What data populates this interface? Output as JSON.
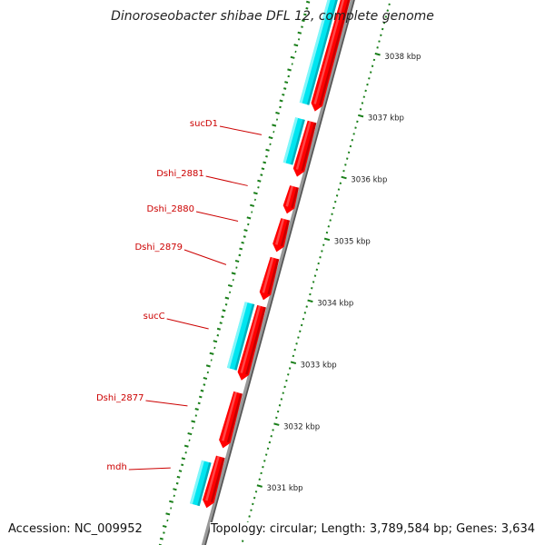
{
  "title": "Dinoroseobacter shibae DFL 12, complete genome",
  "accession": "Accession: NC_009952",
  "summary": "Topology: circular; Length: 3,789,584 bp; Genes: 3,634",
  "colors": {
    "forward_gene": "#00e5f0",
    "reverse_gene": "#ff0000",
    "backbone": "#999999",
    "ticks": "#1a7f1a",
    "gene_label": "#cc0000"
  },
  "axis": {
    "unit": "kbp",
    "ticks": [
      {
        "kbp": 3031,
        "label": "3031 kbp"
      },
      {
        "kbp": 3032,
        "label": "3032 kbp"
      },
      {
        "kbp": 3033,
        "label": "3033 kbp"
      },
      {
        "kbp": 3034,
        "label": "3034 kbp"
      },
      {
        "kbp": 3035,
        "label": "3035 kbp"
      },
      {
        "kbp": 3036,
        "label": "3036 kbp"
      },
      {
        "kbp": 3037,
        "label": "3037 kbp"
      },
      {
        "kbp": 3038,
        "label": "3038 kbp"
      }
    ]
  },
  "genes": [
    {
      "label": "mdh",
      "strand": "reverse",
      "start_kbp": 3030.45,
      "end_kbp": 3031.28
    },
    {
      "label": "Dshi_2877",
      "strand": "reverse",
      "start_kbp": 3031.42,
      "end_kbp": 3032.32
    },
    {
      "label": "sucC",
      "strand": "reverse",
      "start_kbp": 3032.52,
      "end_kbp": 3033.72
    },
    {
      "label": "Dshi_2879",
      "strand": "reverse",
      "start_kbp": 3033.82,
      "end_kbp": 3034.5
    },
    {
      "label": "Dshi_2880",
      "strand": "reverse",
      "start_kbp": 3034.6,
      "end_kbp": 3035.13
    },
    {
      "label": "Dshi_2881",
      "strand": "reverse",
      "start_kbp": 3035.22,
      "end_kbp": 3035.66
    },
    {
      "label": "sucD1",
      "strand": "reverse",
      "start_kbp": 3035.82,
      "end_kbp": 3036.71
    },
    {
      "label": "",
      "strand": "reverse",
      "start_kbp": 3036.88,
      "end_kbp": 3038.9
    }
  ],
  "cds_features": [
    {
      "start_kbp": 3030.45,
      "end_kbp": 3031.15
    },
    {
      "start_kbp": 3032.65,
      "end_kbp": 3033.72
    },
    {
      "start_kbp": 3035.98,
      "end_kbp": 3036.71
    },
    {
      "start_kbp": 3036.95,
      "end_kbp": 3038.9
    }
  ]
}
